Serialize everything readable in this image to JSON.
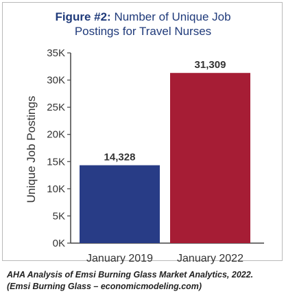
{
  "title": {
    "figure_label": "Figure #2:",
    "line1_rest": "Number of Unique Job",
    "line2": "Postings for Travel Nurses"
  },
  "caption": {
    "line1": "AHA Analysis of Emsi Burning Glass Market Analytics, 2022.",
    "line2": "(Emsi Burning Glass – economicmodeling.com)"
  },
  "colors": {
    "title": "#1f3a7a",
    "bar_2019": "#283c86",
    "bar_2022": "#a61d35",
    "axis": "#444444"
  },
  "chart_data": {
    "type": "bar",
    "ylabel": "Unique Job Postings",
    "categories": [
      "January 2019",
      "January 2022"
    ],
    "values": [
      14328,
      31309
    ],
    "data_labels": [
      "14,328",
      "31,309"
    ],
    "ylim": [
      0,
      35000
    ],
    "yticks": [
      0,
      5000,
      10000,
      15000,
      20000,
      25000,
      30000,
      35000
    ],
    "ytick_labels": [
      "0K",
      "5K",
      "10K",
      "15K",
      "20K",
      "25K",
      "30K",
      "35K"
    ],
    "grid": false
  }
}
